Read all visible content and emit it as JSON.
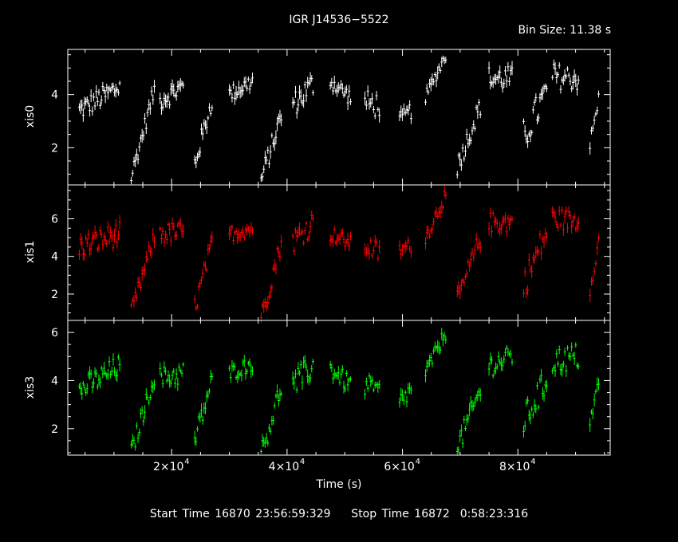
{
  "title": "IGR J14536−5522",
  "bin_size_label": "Bin Size: 11.38 s",
  "footer": "Start Time 16870 23:56:59:329    Stop Time 16872  0:58:23:316",
  "chart_data": {
    "type": "scatter",
    "xlabel": "Time (s)",
    "xlim": [
      2000,
      96000
    ],
    "xticks": [
      20000,
      40000,
      60000,
      80000
    ],
    "xtick_labels": [
      "2×10",
      "4×10",
      "6×10",
      "8×10"
    ],
    "xtick_exponent": "4",
    "panels": [
      {
        "name": "xis0",
        "ylabel": "xis0",
        "color": "#ffffff",
        "ylim": [
          0.6,
          5.7
        ],
        "yticks": [
          2,
          4
        ],
        "segments": [
          {
            "x0": 4000,
            "x1": 11000,
            "y0": 3.4,
            "y1": 4.3,
            "amp": 0.5
          },
          {
            "x0": 13000,
            "x1": 17000,
            "y0": 0.9,
            "y1": 4.2,
            "amp": 0.4
          },
          {
            "x0": 18000,
            "x1": 22000,
            "y0": 3.8,
            "y1": 4.3,
            "amp": 0.5
          },
          {
            "x0": 24000,
            "x1": 27000,
            "y0": 1.4,
            "y1": 3.8,
            "amp": 0.5
          },
          {
            "x0": 30000,
            "x1": 34000,
            "y0": 4.0,
            "y1": 4.5,
            "amp": 0.4
          },
          {
            "x0": 35500,
            "x1": 39000,
            "y0": 0.8,
            "y1": 3.2,
            "amp": 0.5
          },
          {
            "x0": 41000,
            "x1": 44500,
            "y0": 3.6,
            "y1": 4.4,
            "amp": 0.6
          },
          {
            "x0": 47500,
            "x1": 51000,
            "y0": 4.5,
            "y1": 3.9,
            "amp": 0.4
          },
          {
            "x0": 53500,
            "x1": 56000,
            "y0": 3.7,
            "y1": 3.6,
            "amp": 0.6
          },
          {
            "x0": 59500,
            "x1": 61500,
            "y0": 3.0,
            "y1": 3.4,
            "amp": 0.4
          },
          {
            "x0": 64000,
            "x1": 67500,
            "y0": 3.9,
            "y1": 5.5,
            "amp": 0.3
          },
          {
            "x0": 69500,
            "x1": 73500,
            "y0": 1.3,
            "y1": 3.6,
            "amp": 0.5
          },
          {
            "x0": 75000,
            "x1": 79000,
            "y0": 4.6,
            "y1": 4.6,
            "amp": 0.6
          },
          {
            "x0": 81000,
            "x1": 85000,
            "y0": 2.4,
            "y1": 4.1,
            "amp": 0.8
          },
          {
            "x0": 86000,
            "x1": 90500,
            "y0": 4.7,
            "y1": 4.6,
            "amp": 0.6
          },
          {
            "x0": 92500,
            "x1": 94000,
            "y0": 2.1,
            "y1": 3.8,
            "amp": 0.4
          }
        ]
      },
      {
        "name": "xis1",
        "ylabel": "xis1",
        "color": "#ff0000",
        "ylim": [
          0.6,
          7.8
        ],
        "yticks": [
          2,
          4,
          6
        ],
        "segments": [
          {
            "x0": 4000,
            "x1": 11000,
            "y0": 4.5,
            "y1": 5.2,
            "amp": 0.8
          },
          {
            "x0": 13000,
            "x1": 17000,
            "y0": 1.0,
            "y1": 5.0,
            "amp": 0.6
          },
          {
            "x0": 18000,
            "x1": 22000,
            "y0": 5.2,
            "y1": 5.3,
            "amp": 0.7
          },
          {
            "x0": 24000,
            "x1": 27000,
            "y0": 1.3,
            "y1": 4.6,
            "amp": 0.7
          },
          {
            "x0": 30000,
            "x1": 34000,
            "y0": 5.2,
            "y1": 5.5,
            "amp": 0.5
          },
          {
            "x0": 35500,
            "x1": 39000,
            "y0": 0.7,
            "y1": 4.8,
            "amp": 0.7
          },
          {
            "x0": 41000,
            "x1": 44500,
            "y0": 4.8,
            "y1": 5.8,
            "amp": 0.8
          },
          {
            "x0": 47500,
            "x1": 51000,
            "y0": 5.2,
            "y1": 4.7,
            "amp": 0.5
          },
          {
            "x0": 53500,
            "x1": 56000,
            "y0": 4.6,
            "y1": 4.2,
            "amp": 0.7
          },
          {
            "x0": 59500,
            "x1": 61500,
            "y0": 4.3,
            "y1": 4.6,
            "amp": 0.5
          },
          {
            "x0": 64000,
            "x1": 67500,
            "y0": 5.0,
            "y1": 7.3,
            "amp": 0.5
          },
          {
            "x0": 69500,
            "x1": 73500,
            "y0": 1.6,
            "y1": 5.0,
            "amp": 0.7
          },
          {
            "x0": 75000,
            "x1": 79000,
            "y0": 5.8,
            "y1": 5.8,
            "amp": 0.7
          },
          {
            "x0": 81000,
            "x1": 85000,
            "y0": 2.5,
            "y1": 5.3,
            "amp": 1.0
          },
          {
            "x0": 86000,
            "x1": 90500,
            "y0": 6.0,
            "y1": 5.9,
            "amp": 0.7
          },
          {
            "x0": 92500,
            "x1": 94000,
            "y0": 2.3,
            "y1": 4.8,
            "amp": 0.5
          }
        ]
      },
      {
        "name": "xis3",
        "ylabel": "xis3",
        "color": "#00ff00",
        "ylim": [
          0.9,
          6.5
        ],
        "yticks": [
          2,
          4,
          6
        ],
        "segments": [
          {
            "x0": 4000,
            "x1": 11000,
            "y0": 3.6,
            "y1": 4.6,
            "amp": 0.6
          },
          {
            "x0": 13000,
            "x1": 17000,
            "y0": 1.0,
            "y1": 4.2,
            "amp": 0.5
          },
          {
            "x0": 18000,
            "x1": 22000,
            "y0": 4.1,
            "y1": 4.3,
            "amp": 0.6
          },
          {
            "x0": 24000,
            "x1": 27000,
            "y0": 1.5,
            "y1": 4.0,
            "amp": 0.6
          },
          {
            "x0": 30000,
            "x1": 34000,
            "y0": 4.3,
            "y1": 4.7,
            "amp": 0.4
          },
          {
            "x0": 35500,
            "x1": 39000,
            "y0": 0.9,
            "y1": 3.8,
            "amp": 0.6
          },
          {
            "x0": 41000,
            "x1": 44500,
            "y0": 3.8,
            "y1": 4.6,
            "amp": 0.7
          },
          {
            "x0": 47500,
            "x1": 51000,
            "y0": 4.5,
            "y1": 3.8,
            "amp": 0.5
          },
          {
            "x0": 53500,
            "x1": 56000,
            "y0": 3.8,
            "y1": 3.5,
            "amp": 0.6
          },
          {
            "x0": 59500,
            "x1": 61500,
            "y0": 3.1,
            "y1": 3.6,
            "amp": 0.5
          },
          {
            "x0": 64000,
            "x1": 67500,
            "y0": 4.3,
            "y1": 6.0,
            "amp": 0.4
          },
          {
            "x0": 69500,
            "x1": 73500,
            "y0": 1.2,
            "y1": 3.6,
            "amp": 0.6
          },
          {
            "x0": 75000,
            "x1": 79000,
            "y0": 4.6,
            "y1": 5.0,
            "amp": 0.6
          },
          {
            "x0": 81000,
            "x1": 85000,
            "y0": 2.3,
            "y1": 4.0,
            "amp": 0.8
          },
          {
            "x0": 86000,
            "x1": 90500,
            "y0": 4.8,
            "y1": 5.0,
            "amp": 0.7
          },
          {
            "x0": 92500,
            "x1": 94000,
            "y0": 2.3,
            "y1": 3.9,
            "amp": 0.4
          }
        ]
      }
    ]
  }
}
